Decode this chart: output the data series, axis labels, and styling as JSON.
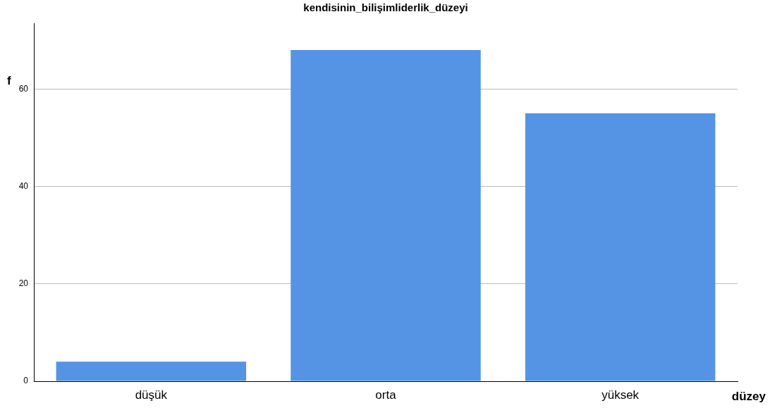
{
  "chart_data": {
    "type": "bar",
    "title": "kendisinin_bilişimliderlik_düzeyi",
    "xlabel": "düzey",
    "ylabel": "f",
    "categories": [
      "düşük",
      "orta",
      "yüksek"
    ],
    "values": [
      4,
      68,
      55
    ],
    "color": "#5594e4",
    "ylim": [
      0,
      73.5
    ],
    "yticks": [
      0,
      20,
      40,
      60
    ],
    "grid": "y"
  }
}
